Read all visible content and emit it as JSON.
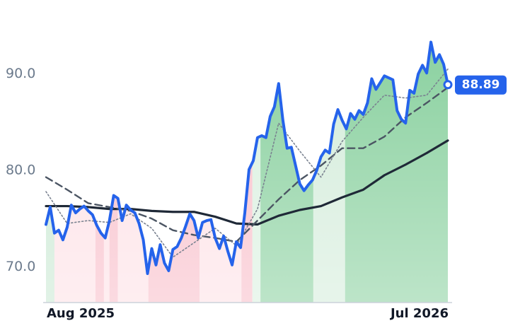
{
  "chart_data": {
    "type": "line",
    "x": [
      0,
      1,
      2,
      3,
      4,
      5,
      6,
      7,
      8,
      9,
      10,
      11,
      12,
      13,
      14,
      15,
      16,
      17,
      18,
      19,
      20,
      21,
      22,
      23,
      24,
      25,
      26,
      27,
      28,
      29,
      30,
      31,
      32,
      33,
      34,
      35,
      36,
      37,
      38,
      39,
      40,
      41,
      42,
      43,
      44,
      45,
      46,
      47,
      48,
      49,
      50,
      51,
      52,
      53,
      54,
      55,
      56,
      57,
      58,
      59,
      60,
      61,
      62,
      63,
      64,
      65,
      66,
      67,
      68,
      69,
      70,
      71,
      72,
      73,
      74,
      75,
      76,
      77,
      78,
      79,
      80,
      81,
      82,
      83,
      84,
      85,
      86,
      87,
      88,
      89,
      90,
      91,
      92,
      93,
      94,
      95
    ],
    "xlim": [
      0,
      95
    ],
    "xticks": [
      {
        "value": 0,
        "label": "Aug 2025"
      },
      {
        "value": 95,
        "label": "Jul 2026"
      }
    ],
    "ylim": [
      66.3,
      96.2
    ],
    "yticks": [
      {
        "value": 70,
        "label": "70.0"
      },
      {
        "value": 80,
        "label": "80.0"
      },
      {
        "value": 90,
        "label": "90.0"
      }
    ],
    "grid": false,
    "series": [
      {
        "color": "#2563eb",
        "width": 4,
        "style": "solid",
        "values": [
          74.4,
          76.2,
          73.5,
          73.8,
          72.8,
          74.1,
          76.4,
          75.6,
          76.0,
          76.3,
          75.8,
          75.4,
          74.3,
          73.5,
          73.0,
          74.8,
          77.4,
          77.1,
          74.8,
          76.4,
          75.9,
          75.6,
          74.5,
          72.8,
          69.3,
          71.9,
          70.2,
          72.3,
          70.4,
          69.6,
          71.8,
          72.1,
          73.0,
          74.2,
          75.5,
          74.8,
          73.0,
          74.6,
          74.8,
          74.9,
          73.0,
          71.9,
          73.2,
          71.6,
          70.2,
          72.6,
          72.0,
          75.6,
          80.1,
          81.0,
          83.4,
          83.6,
          83.4,
          85.6,
          86.6,
          89.0,
          85.2,
          82.3,
          82.4,
          80.5,
          78.6,
          77.9,
          78.5,
          79.0,
          80.0,
          81.4,
          82.1,
          81.8,
          84.8,
          86.3,
          85.2,
          84.3,
          85.9,
          85.3,
          86.2,
          85.8,
          87.0,
          89.5,
          88.4,
          89.1,
          89.8,
          89.6,
          89.4,
          86.2,
          85.3,
          84.9,
          88.3,
          88.0,
          90.0,
          90.9,
          90.1,
          93.3,
          91.2,
          92.0,
          91.0,
          88.89
        ],
        "value_labels": {
          "95": "88.89"
        }
      },
      {
        "color": "#7a8290",
        "width": 1.6,
        "style": "dotted",
        "x": [
          0,
          5,
          10,
          15,
          20,
          25,
          30,
          35,
          40,
          45,
          50,
          55,
          60,
          65,
          70,
          75,
          80,
          85,
          90,
          95
        ],
        "values": [
          77.8,
          74.5,
          74.8,
          74.6,
          75.5,
          74.0,
          71.0,
          72.5,
          74.0,
          72.2,
          76.0,
          84.9,
          82.0,
          79.3,
          83.0,
          85.5,
          87.8,
          87.5,
          87.8,
          90.5
        ]
      },
      {
        "color": "#4b5563",
        "width": 2.4,
        "style": "dashed",
        "x": [
          0,
          5,
          10,
          15,
          20,
          25,
          30,
          35,
          40,
          45,
          50,
          55,
          60,
          65,
          70,
          75,
          80,
          85,
          90,
          95
        ],
        "values": [
          79.3,
          78.0,
          76.6,
          76.2,
          75.8,
          75.0,
          73.8,
          73.3,
          73.0,
          72.6,
          74.8,
          77.0,
          79.0,
          80.5,
          82.3,
          82.3,
          83.5,
          85.5,
          87.0,
          88.6
        ]
      },
      {
        "color": "#1f2937",
        "width": 3.2,
        "style": "solid",
        "x": [
          0,
          5,
          10,
          15,
          20,
          25,
          30,
          35,
          40,
          45,
          50,
          55,
          60,
          65,
          70,
          75,
          80,
          85,
          90,
          95
        ],
        "values": [
          76.3,
          76.3,
          76.2,
          76.0,
          76.0,
          75.8,
          75.7,
          75.7,
          75.2,
          74.5,
          74.4,
          75.3,
          75.9,
          76.3,
          77.2,
          78.0,
          79.5,
          80.6,
          81.8,
          83.1
        ]
      }
    ],
    "bands": [
      {
        "start": 0,
        "end": 2,
        "color": "#c9e8d2"
      },
      {
        "start": 2,
        "end": 11.7,
        "color": "#fde0e5"
      },
      {
        "start": 11.7,
        "end": 13.7,
        "color": "#f8bcc8"
      },
      {
        "start": 13.7,
        "end": 15,
        "color": "#fde0e5"
      },
      {
        "start": 15,
        "end": 17,
        "color": "#f8bcc8"
      },
      {
        "start": 17,
        "end": 24.2,
        "color": "#fde0e5"
      },
      {
        "start": 24.2,
        "end": 36.3,
        "color": "#f8bcc8"
      },
      {
        "start": 36.3,
        "end": 46.2,
        "color": "#fde0e5"
      },
      {
        "start": 46.2,
        "end": 48.8,
        "color": "#f8bcc8"
      },
      {
        "start": 48.8,
        "end": 50.7,
        "color": "#d9f0df"
      },
      {
        "start": 50.7,
        "end": 63.2,
        "color": "#86cf9c"
      },
      {
        "start": 63.2,
        "end": 70.7,
        "color": "#d3ecda"
      },
      {
        "start": 70.7,
        "end": 95,
        "color": "#86cf9c"
      }
    ]
  }
}
